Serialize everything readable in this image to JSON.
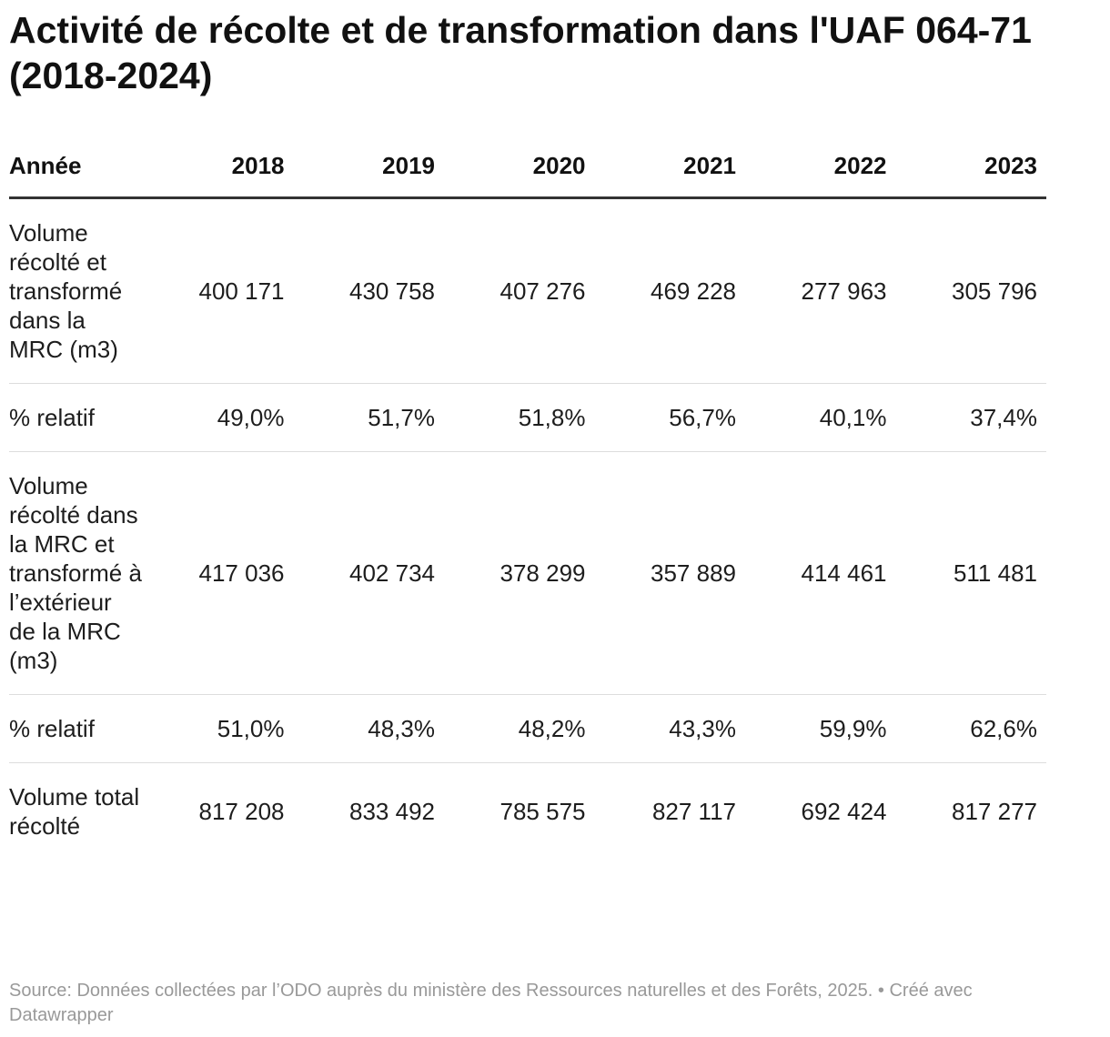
{
  "header": {
    "title": "Activité de récolte et de transformation dans l'UAF 064-71 (2018-2024)"
  },
  "table": {
    "columns": [
      "Année",
      "2018",
      "2019",
      "2020",
      "2021",
      "2022",
      "2023"
    ],
    "rows": [
      [
        "Volume récolté et transformé dans la MRC (m3)",
        "400 171",
        "430 758",
        "407 276",
        "469 228",
        "277 963",
        "305 796"
      ],
      [
        "% relatif",
        "49,0%",
        "51,7%",
        "51,8%",
        "56,7%",
        "40,1%",
        "37,4%"
      ],
      [
        "Volume récolté dans la MRC et transformé à l’extérieur de la MRC (m3)",
        "417 036",
        "402 734",
        "378 299",
        "357 889",
        "414 461",
        "511 481"
      ],
      [
        "% relatif",
        "51,0%",
        "48,3%",
        "48,2%",
        "43,3%",
        "59,9%",
        "62,6%"
      ],
      [
        "Volume total récolté",
        "817 208",
        "833 492",
        "785 575",
        "827 117",
        "692 424",
        "817 277"
      ]
    ]
  },
  "footer": {
    "source": "Source: Données collectées par l’ODO auprès du ministère des Ressources naturelles et des Forêts, 2025. • Créé avec Datawrapper"
  }
}
